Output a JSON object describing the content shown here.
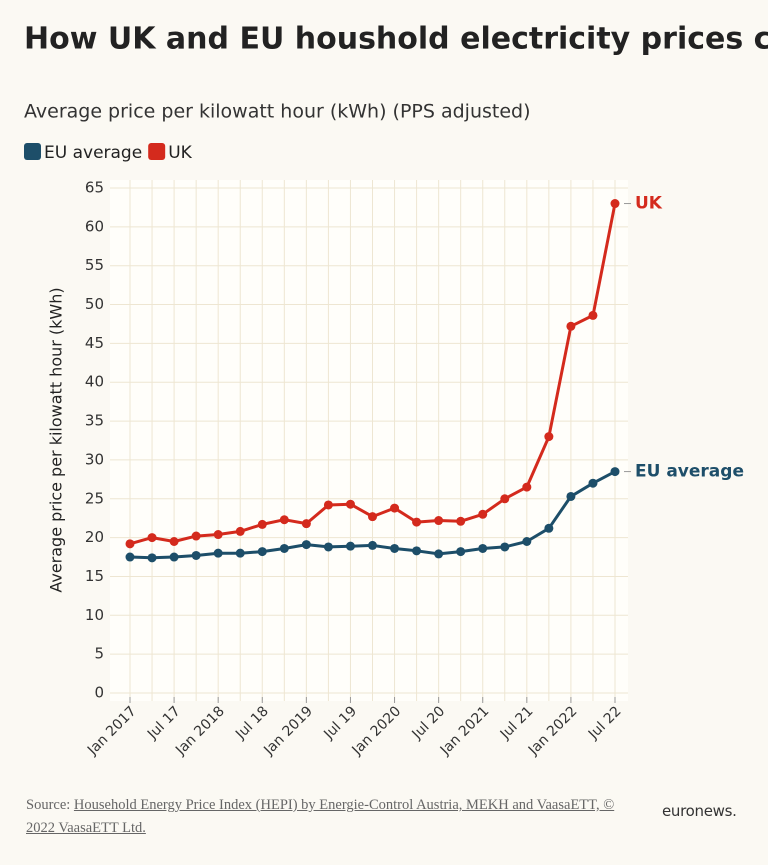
{
  "chart_data": {
    "type": "line",
    "title": "How UK and EU houshold electricity prices compare",
    "subtitle": "Average price per kilowatt hour (kWh) (PPS adjusted)",
    "y_label": "Average price per kilowatt hour (kWh)",
    "source_prefix": "Source:",
    "source": "Household Energy Price Index (HEPI) by Energie-Control Austria, MEKH and VaasaETT, © 2022 VaasaETT Ltd.",
    "brand": "euronews.",
    "categories": [
      "Jan 2017",
      null,
      "Jul 17",
      null,
      "Jan 2018",
      null,
      "Jul 18",
      null,
      "Jan 2019",
      null,
      "Jul 19",
      null,
      "Jan 2020",
      null,
      "Jul 20",
      null,
      "Jan 2021",
      null,
      "Jul 21",
      null,
      "Jan 2022",
      null,
      "Jul 22"
    ],
    "series": [
      {
        "name": "EU average",
        "color": "#1d4e69",
        "values": [
          17.5,
          17.4,
          17.5,
          17.7,
          18.0,
          18.0,
          18.2,
          18.6,
          19.1,
          18.8,
          18.9,
          19.0,
          18.6,
          18.3,
          17.9,
          18.2,
          18.6,
          18.8,
          19.5,
          21.2,
          25.3,
          27.0,
          28.5
        ]
      },
      {
        "name": "UK",
        "color": "#d42a1d",
        "values": [
          19.2,
          20.0,
          19.5,
          20.2,
          20.4,
          20.8,
          21.7,
          22.3,
          21.8,
          24.2,
          24.3,
          22.7,
          23.8,
          22.0,
          22.2,
          22.1,
          23.0,
          25.0,
          26.5,
          33.0,
          47.2,
          48.6,
          63.0
        ]
      }
    ],
    "ylim": [
      0,
      65
    ],
    "yticks": [
      0,
      5,
      10,
      15,
      20,
      25,
      30,
      35,
      40,
      45,
      50,
      55,
      60,
      65
    ],
    "grid": true
  }
}
